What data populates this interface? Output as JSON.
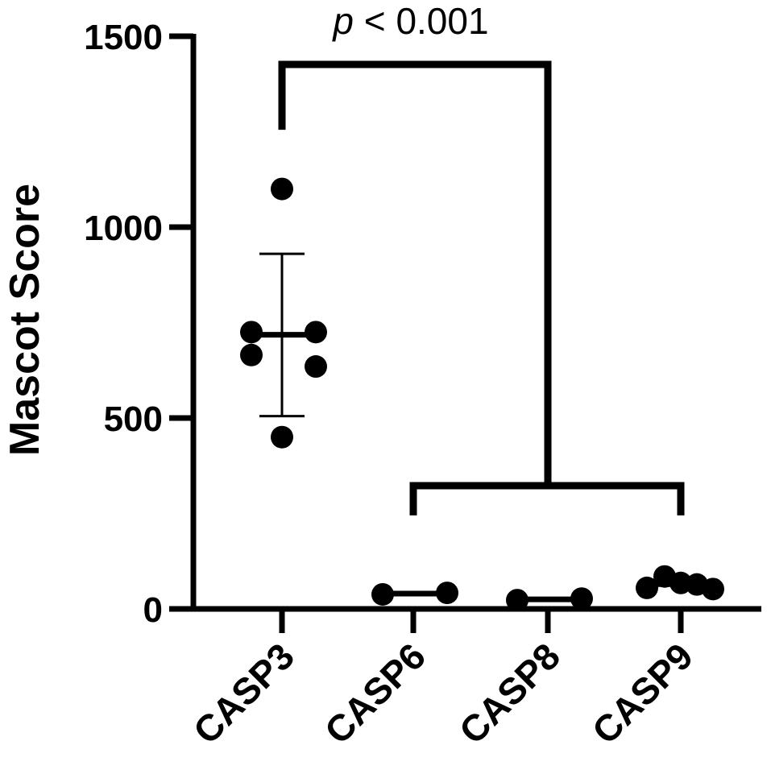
{
  "chart_data": {
    "type": "scatter",
    "title": "",
    "xlabel": "",
    "ylabel": "Mascot Score",
    "ylim": [
      0,
      1500
    ],
    "yticks": [
      0,
      500,
      1000,
      1500
    ],
    "categories": [
      "CASP3",
      "CASP6",
      "CASP8",
      "CASP9"
    ],
    "series": [
      {
        "category": "CASP3",
        "points": [
          1100,
          725,
          725,
          665,
          635,
          450
        ],
        "mean": 718,
        "error_low": 505,
        "error_high": 930
      },
      {
        "category": "CASP6",
        "points": [
          38,
          42
        ],
        "mean": 40
      },
      {
        "category": "CASP8",
        "points": [
          23,
          27
        ],
        "mean": 25
      },
      {
        "category": "CASP9",
        "points": [
          55,
          85,
          68,
          64,
          52
        ],
        "mean": 65
      }
    ],
    "significance": {
      "label_italic": "p",
      "label_rest": " < 0.001",
      "from": "CASP3",
      "to": [
        "CASP6",
        "CASP9"
      ]
    },
    "grid": false,
    "legend": "none",
    "colors": {
      "marks": "#000000"
    }
  }
}
